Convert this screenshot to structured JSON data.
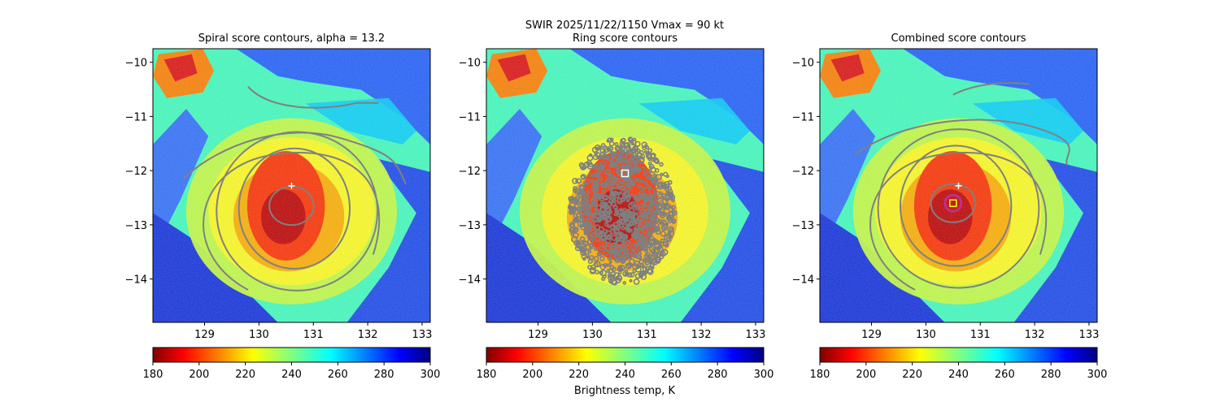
{
  "suptitle": "SWIR  2025/11/22/1150    Vmax = 90 kt",
  "colorbar_label": "Brightness temp, K",
  "colors": {
    "contour": "#808080",
    "center_marker": "#ffffff",
    "best_marker": "#ffff00",
    "ring_marker": "#c0308a"
  },
  "chart_data": [
    {
      "type": "heatmap",
      "title": "Spiral score contours, alpha = 13.2",
      "xlabel": "",
      "ylabel": "",
      "xlim": [
        128.05,
        133.15
      ],
      "ylim": [
        -14.8,
        -9.75
      ],
      "xticks": [
        "129",
        "130",
        "131",
        "132",
        "133"
      ],
      "yticks": [
        "−10",
        "−11",
        "−12",
        "−13",
        "−14"
      ],
      "colormap": "jet",
      "clim": [
        180,
        300
      ],
      "colorbar_ticks": [
        "180",
        "200",
        "220",
        "240",
        "260",
        "280",
        "300"
      ],
      "center": {
        "x": 130.6,
        "y": -12.28
      },
      "grid": false
    },
    {
      "type": "heatmap",
      "title": "Ring score contours",
      "xlabel": "",
      "ylabel": "",
      "xlim": [
        128.05,
        133.15
      ],
      "ylim": [
        -14.8,
        -9.75
      ],
      "xticks": [
        "129",
        "130",
        "131",
        "132",
        "133"
      ],
      "yticks": [
        "−10",
        "−11",
        "−12",
        "−13",
        "−14"
      ],
      "colormap": "jet",
      "clim": [
        180,
        300
      ],
      "colorbar_ticks": [
        "180",
        "200",
        "220",
        "240",
        "260",
        "280",
        "300"
      ],
      "best_ring_center": {
        "x": 130.6,
        "y": -12.05
      },
      "grid": false
    },
    {
      "type": "heatmap",
      "title": "Combined score contours",
      "xlabel": "",
      "ylabel": "",
      "xlim": [
        128.05,
        133.15
      ],
      "ylim": [
        -14.8,
        -9.75
      ],
      "xticks": [
        "129",
        "130",
        "131",
        "132",
        "133"
      ],
      "yticks": [
        "−10",
        "−11",
        "−12",
        "−13",
        "−14"
      ],
      "colormap": "jet",
      "clim": [
        180,
        300
      ],
      "colorbar_ticks": [
        "180",
        "200",
        "220",
        "240",
        "260",
        "280",
        "300"
      ],
      "center": {
        "x": 130.6,
        "y": -12.28
      },
      "best_combined_center": {
        "x": 130.5,
        "y": -12.6
      },
      "grid": false
    }
  ]
}
